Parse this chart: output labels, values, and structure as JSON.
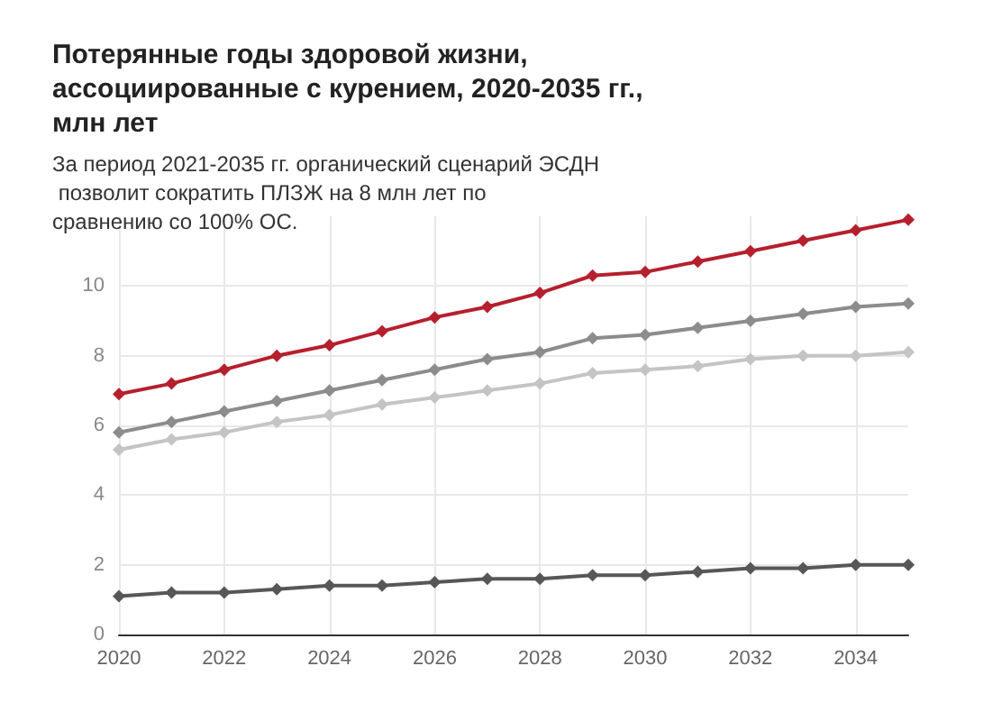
{
  "chart_data": {
    "type": "line",
    "title": "Потерянные годы здоровой жизни, ассоциированные с курением, 2020-2035 гг., млн лет",
    "subtitle": "За период 2021-2035 гг. органический сценарий ЭСДН позволит сократить ПЛЗЖ на 8 млн лет по сравнению со 100% ОС.",
    "x": [
      2020,
      2021,
      2022,
      2023,
      2024,
      2025,
      2026,
      2027,
      2028,
      2029,
      2030,
      2031,
      2032,
      2033,
      2034,
      2035
    ],
    "series": [
      {
        "color": "#b5202e",
        "values": [
          6.9,
          7.2,
          7.6,
          8.0,
          8.3,
          8.7,
          9.1,
          9.4,
          9.8,
          10.3,
          10.4,
          10.7,
          11.0,
          11.3,
          11.6,
          11.9
        ]
      },
      {
        "color": "#8c8c8c",
        "values": [
          5.8,
          6.1,
          6.4,
          6.7,
          7.0,
          7.3,
          7.6,
          7.9,
          8.1,
          8.5,
          8.6,
          8.8,
          9.0,
          9.2,
          9.4,
          9.5
        ]
      },
      {
        "color": "#c4c4c4",
        "values": [
          5.3,
          5.6,
          5.8,
          6.1,
          6.3,
          6.6,
          6.8,
          7.0,
          7.2,
          7.5,
          7.6,
          7.7,
          7.9,
          8.0,
          8.0,
          8.1
        ]
      },
      {
        "color": "#575757",
        "values": [
          1.1,
          1.2,
          1.2,
          1.3,
          1.4,
          1.4,
          1.5,
          1.6,
          1.6,
          1.7,
          1.7,
          1.8,
          1.9,
          1.9,
          2.0,
          2.0
        ]
      }
    ],
    "xlim": [
      2020,
      2035
    ],
    "xticks": [
      2020,
      2022,
      2024,
      2026,
      2028,
      2030,
      2032,
      2034
    ],
    "ylim": [
      0,
      12
    ],
    "yticks": [
      0,
      2,
      4,
      6,
      8,
      10
    ],
    "grid": true,
    "marker": "diamond",
    "line_style": "solid"
  }
}
